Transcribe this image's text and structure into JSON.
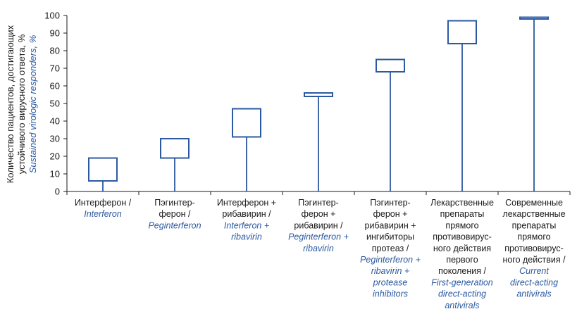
{
  "chart_data": {
    "type": "box",
    "ylabel_ru": [
      "Количество пациентов, достигающих",
      "устойчивого вирусного ответа, %"
    ],
    "ylabel_en": "Sustained virologic responders, %",
    "ylim": [
      0,
      100
    ],
    "yticks": [
      0,
      10,
      20,
      30,
      40,
      50,
      60,
      70,
      80,
      90,
      100
    ],
    "categories": [
      {
        "ru": [
          "Интерферон /"
        ],
        "en": [
          "Interferon"
        ],
        "low": 6,
        "high": 19,
        "whisker_min": 0
      },
      {
        "ru": [
          "Пэгинтер-",
          "ферон /"
        ],
        "en": [
          "Peginterferon"
        ],
        "low": 19,
        "high": 30,
        "whisker_min": 0
      },
      {
        "ru": [
          "Интерферон +",
          "рибавирин /"
        ],
        "en": [
          "Interferon +",
          "ribavirin"
        ],
        "low": 31,
        "high": 47,
        "whisker_min": 0
      },
      {
        "ru": [
          "Пэгинтер-",
          "ферон +",
          "рибавирин /"
        ],
        "en": [
          "Peginterferon +",
          "ribavirin"
        ],
        "low": 54,
        "high": 56,
        "whisker_min": 0
      },
      {
        "ru": [
          "Пэгинтер-",
          "ферон +",
          "рибавирин +",
          "ингибиторы",
          "протеаз /"
        ],
        "en": [
          "Peginterferon +",
          "ribavirin +",
          "protease",
          "inhibitors"
        ],
        "low": 68,
        "high": 75,
        "whisker_min": 0
      },
      {
        "ru": [
          "Лекарственные",
          "препараты",
          "прямого",
          "противовирус-",
          "ного действия",
          "первого",
          "поколения /"
        ],
        "en": [
          "First-generation",
          "direct-acting",
          "antivirals"
        ],
        "low": 84,
        "high": 97,
        "whisker_min": 0
      },
      {
        "ru": [
          "Современные",
          "лекарственные",
          "препараты",
          "прямого",
          "противовирус-",
          "ного действия /"
        ],
        "en": [
          "Current",
          "direct-acting",
          "antivirals"
        ],
        "low": 98,
        "high": 99,
        "whisker_min": 0
      }
    ],
    "colors": {
      "primary": "#2b5aa0",
      "axis": "#1a1a1a",
      "text_en": "#2b5aa0"
    }
  }
}
